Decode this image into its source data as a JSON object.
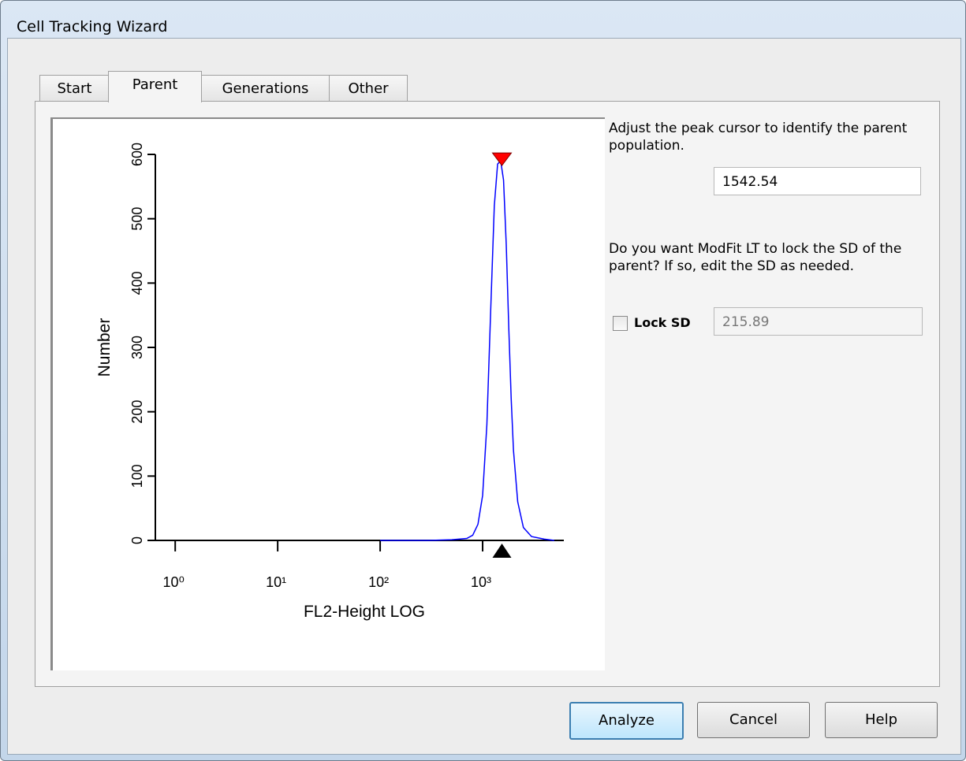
{
  "window": {
    "title": "Cell Tracking Wizard"
  },
  "tabs": [
    "Start",
    "Parent",
    "Generations",
    "Other"
  ],
  "selected_tab": 1,
  "chart_data": {
    "type": "line",
    "x_label": "FL2-Height LOG",
    "y_label": "Number",
    "x_scale": "log",
    "x": [
      100,
      300,
      500,
      700,
      800,
      900,
      1000,
      1100,
      1200,
      1300,
      1400,
      1500,
      1600,
      1700,
      1800,
      1900,
      2000,
      2200,
      2500,
      3000,
      4000,
      5000
    ],
    "series": [
      {
        "color": "#0000ff",
        "values": [
          0,
          0,
          1,
          3,
          8,
          25,
          70,
          180,
          360,
          520,
          585,
          590,
          560,
          460,
          330,
          220,
          140,
          60,
          20,
          6,
          2,
          0
        ]
      }
    ],
    "xlim": [
      0.64,
      6200
    ],
    "xticks": [
      {
        "value": 1,
        "label": "10⁰"
      },
      {
        "value": 10,
        "label": "10¹"
      },
      {
        "value": 100,
        "label": "10²"
      },
      {
        "value": 1000,
        "label": "10³"
      }
    ],
    "ylim": [
      0,
      600
    ],
    "yticks": [
      0,
      100,
      200,
      300,
      400,
      500,
      600
    ]
  },
  "panel": {
    "instruction": "Adjust the peak cursor to identify the parent population.",
    "peak": 1542.54,
    "lock_question": "Do you want ModFit LT to lock the SD of the parent?  If so, edit the SD as needed.",
    "lock_label": "Lock SD",
    "lock_checked": false,
    "sd": 215.89
  },
  "buttons": [
    "Analyze",
    "Cancel",
    "Help"
  ]
}
